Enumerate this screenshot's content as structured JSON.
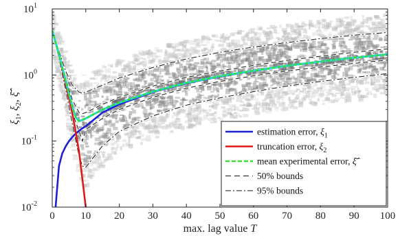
{
  "chart_data": {
    "type": "line",
    "xlabel": "max. lag value",
    "xlabel_var": "T",
    "ylabel_parts": [
      "ξ",
      "1",
      ", ",
      "ξ",
      "2",
      ", ",
      "ξ̄̂"
    ],
    "xlim": [
      0,
      100
    ],
    "ylim": [
      0.01,
      10
    ],
    "yscale": "log",
    "x_ticks": [
      0,
      10,
      20,
      30,
      40,
      50,
      60,
      70,
      80,
      90,
      100
    ],
    "x_tick_labels": [
      "0",
      "10",
      "20",
      "30",
      "40",
      "50",
      "60",
      "70",
      "80",
      "90",
      "100"
    ],
    "y_ticks": [
      0.01,
      0.1,
      1,
      10
    ],
    "y_tick_labels": [
      {
        "base": "10",
        "exp": "-2"
      },
      {
        "base": "10",
        "exp": "-1"
      },
      {
        "base": "10",
        "exp": "0"
      },
      {
        "base": "10",
        "exp": "1"
      }
    ],
    "legend_position": "bottom-right",
    "legend": [
      {
        "label": "estimation error, ",
        "sym": "ξ",
        "sub": "1",
        "color": "#1f1fd6",
        "style": "solid"
      },
      {
        "label": "truncation error, ",
        "sym": "ξ",
        "sub": "2",
        "color": "#e01818",
        "style": "solid"
      },
      {
        "label": "mean experimental error, ",
        "sym": "ξ̄̂",
        "sub": "",
        "color": "#33e033",
        "style": "dashed"
      },
      {
        "label": "50% bounds",
        "sym": "",
        "sub": "",
        "color": "#111111",
        "style": "dashed"
      },
      {
        "label": "95% bounds",
        "sym": "",
        "sub": "",
        "color": "#111111",
        "style": "dashdot"
      }
    ],
    "series": [
      {
        "name": "estimation error, ξ1",
        "color": "#1f1fd6",
        "x": [
          1,
          2,
          3,
          4,
          5,
          6,
          7,
          8,
          9,
          10,
          15,
          20,
          30,
          40,
          50,
          60,
          70,
          80,
          90,
          100
        ],
        "y": [
          0.01,
          0.042,
          0.065,
          0.083,
          0.1,
          0.115,
          0.13,
          0.143,
          0.156,
          0.168,
          0.27,
          0.36,
          0.55,
          0.75,
          0.95,
          1.15,
          1.38,
          1.6,
          1.83,
          2.05
        ]
      },
      {
        "name": "truncation error, ξ2",
        "color": "#e01818",
        "x": [
          0,
          2,
          4,
          6,
          8,
          10
        ],
        "y": [
          4.8,
          2.0,
          0.75,
          0.26,
          0.07,
          0.01
        ]
      },
      {
        "name": "mean experimental error",
        "color": "#33e033",
        "x": [
          0,
          2,
          4,
          6,
          7,
          8,
          9,
          10,
          15,
          20,
          30,
          40,
          50,
          60,
          70,
          80,
          90,
          100
        ],
        "y": [
          4.8,
          2.05,
          0.83,
          0.33,
          0.23,
          0.2,
          0.21,
          0.22,
          0.3,
          0.38,
          0.56,
          0.76,
          0.96,
          1.16,
          1.38,
          1.6,
          1.83,
          2.05
        ]
      },
      {
        "name": "50% upper",
        "color": "#111111",
        "style": "dashed",
        "x": [
          0,
          2,
          4,
          6,
          8,
          9,
          10,
          15,
          20,
          30,
          40,
          50,
          60,
          70,
          80,
          90,
          100
        ],
        "y": [
          4.8,
          2.1,
          0.9,
          0.42,
          0.27,
          0.26,
          0.27,
          0.36,
          0.46,
          0.68,
          0.92,
          1.15,
          1.4,
          1.66,
          1.92,
          2.2,
          2.48
        ]
      },
      {
        "name": "50% lower",
        "color": "#111111",
        "style": "dashed",
        "x": [
          0,
          2,
          4,
          6,
          8,
          9,
          10,
          15,
          20,
          30,
          40,
          50,
          60,
          70,
          80,
          90,
          100
        ],
        "y": [
          4.8,
          1.95,
          0.75,
          0.27,
          0.14,
          0.1,
          0.15,
          0.22,
          0.3,
          0.46,
          0.63,
          0.8,
          0.97,
          1.15,
          1.32,
          1.5,
          1.68
        ]
      },
      {
        "name": "95% upper",
        "color": "#111111",
        "style": "dashdot",
        "x": [
          0,
          2,
          4,
          6,
          8,
          9,
          10,
          15,
          20,
          30,
          40,
          50,
          60,
          70,
          80,
          90,
          100
        ],
        "y": [
          4.8,
          2.3,
          1.15,
          0.7,
          0.55,
          0.53,
          0.55,
          0.7,
          0.9,
          1.3,
          1.75,
          2.2,
          2.65,
          3.1,
          3.55,
          4.0,
          4.4
        ]
      },
      {
        "name": "95% lower",
        "color": "#111111",
        "style": "dashdot",
        "x": [
          0,
          2,
          4,
          6,
          8,
          9,
          10,
          15,
          20,
          30,
          40,
          50,
          60,
          70,
          80,
          90,
          100
        ],
        "y": [
          4.8,
          1.8,
          0.6,
          0.18,
          0.06,
          0.042,
          0.04,
          0.085,
          0.14,
          0.24,
          0.35,
          0.45,
          0.56,
          0.68,
          0.8,
          0.92,
          1.05
        ]
      }
    ]
  }
}
